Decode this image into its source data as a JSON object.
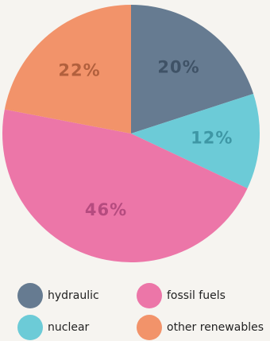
{
  "chart_data": {
    "type": "pie",
    "title": "",
    "slices": [
      {
        "name": "hydraulic",
        "value": 20,
        "label": "20%",
        "color": "#667b91",
        "label_color": "#3f5266"
      },
      {
        "name": "nuclear",
        "value": 12,
        "label": "12%",
        "color": "#6ccbd7",
        "label_color": "#3e97a5"
      },
      {
        "name": "fossil fuels",
        "value": 46,
        "label": "46%",
        "color": "#ec76a8",
        "label_color": "#b54b7f"
      },
      {
        "name": "other renewables",
        "value": 22,
        "label": "22%",
        "color": "#f2936a",
        "label_color": "#b2603d"
      }
    ],
    "legend": [
      {
        "label": "hydraulic",
        "color": "#667b91"
      },
      {
        "label": "fossil fuels",
        "color": "#ec76a8"
      },
      {
        "label": "nuclear",
        "color": "#6ccbd7"
      },
      {
        "label": "other renewables",
        "color": "#f2936a"
      }
    ],
    "legend_position": "bottom",
    "start_angle_deg": 0,
    "direction": "clockwise"
  }
}
